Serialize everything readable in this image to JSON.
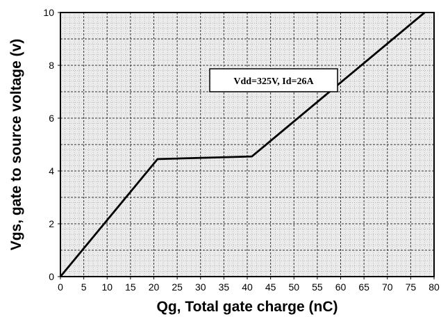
{
  "chart_data": {
    "type": "line",
    "xlabel": "Qg, Total gate charge (nC)",
    "ylabel": "Vgs, gate to source voltage (v)",
    "xlim": [
      0,
      80
    ],
    "ylim": [
      0,
      10
    ],
    "x_ticks": [
      0,
      5,
      10,
      15,
      20,
      25,
      30,
      35,
      40,
      45,
      50,
      55,
      60,
      65,
      70,
      75,
      80
    ],
    "y_ticks": [
      0,
      2,
      4,
      6,
      8,
      10
    ],
    "x_tick_labels": [
      "0",
      "5",
      "10",
      "15",
      "20",
      "25",
      "30",
      "35",
      "40",
      "45",
      "50",
      "55",
      "60",
      "65",
      "70",
      "75",
      "80"
    ],
    "y_tick_labels": [
      "0",
      "2",
      "4",
      "6",
      "8",
      "10"
    ],
    "grid": true,
    "annotation": "Vdd=325V, Id=26A",
    "series": [
      {
        "x": [
          0,
          20.8,
          41,
          78
        ],
        "y": [
          0,
          4.45,
          4.55,
          10
        ]
      }
    ]
  }
}
